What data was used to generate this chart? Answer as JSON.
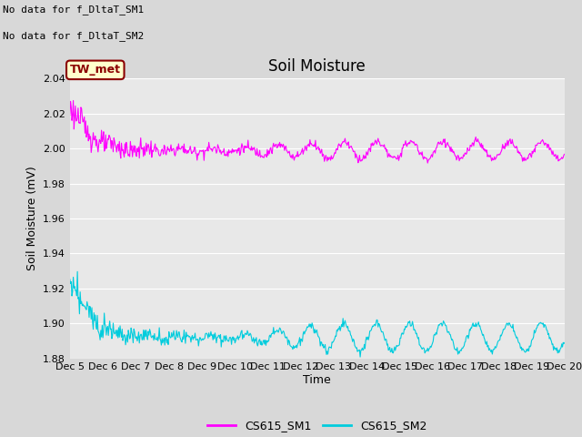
{
  "title": "Soil Moisture",
  "ylabel": "Soil Moisture (mV)",
  "xlabel": "Time",
  "text_no_data_1": "No data for f_DltaT_SM1",
  "text_no_data_2": "No data for f_DltaT_SM2",
  "legend_label": "TW_met",
  "legend_box_color": "#ffffcc",
  "legend_box_edge": "#8B0000",
  "legend_text_color": "#8B0000",
  "ylim": [
    1.88,
    2.04
  ],
  "yticks": [
    1.88,
    1.9,
    1.92,
    1.94,
    1.96,
    1.98,
    2.0,
    2.02,
    2.04
  ],
  "color_sm1": "#ff00ff",
  "color_sm2": "#00ccdd",
  "bg_color": "#d8d8d8",
  "plot_bg_color": "#e8e8e8",
  "series_labels": [
    "CS615_SM1",
    "CS615_SM2"
  ],
  "title_fontsize": 12,
  "label_fontsize": 9,
  "tick_fontsize": 8,
  "nodata_fontsize": 8,
  "n_points": 720
}
